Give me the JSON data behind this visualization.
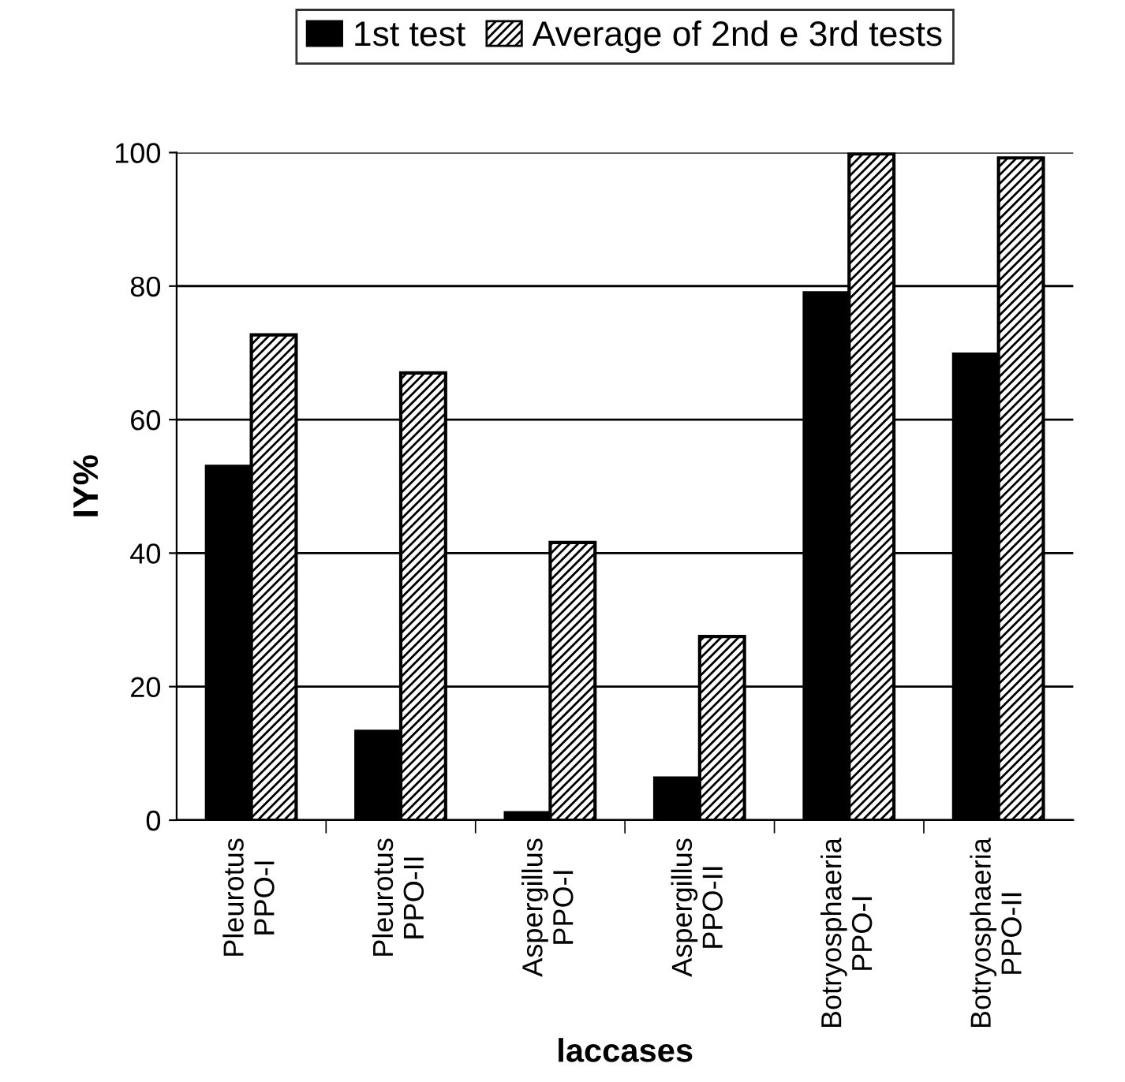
{
  "chart_data": {
    "type": "bar",
    "xlabel": "laccases",
    "ylabel": "IY%",
    "categories": [
      "Pleurotus\nPPO-I",
      "Pleurotus\nPPO-II",
      "Aspergillus\nPPO-I",
      "Aspergillus\nPPO-II",
      "Botryosphaeria\nPPO-I",
      "Botryosphaeria\nPPO-II"
    ],
    "series": [
      {
        "name": "1st test",
        "color": "#000000",
        "values": [
          53,
          13.3,
          1.1,
          6.3,
          79,
          69.8
        ]
      },
      {
        "name": "Average of 2nd e 3rd tests",
        "color": "#000000",
        "values": [
          72.7,
          67,
          41.6,
          27.5,
          99.8,
          99.2
        ]
      }
    ],
    "ylim": [
      0,
      100
    ],
    "yticks": [
      0,
      20,
      40,
      60,
      80,
      100
    ],
    "grid": "y",
    "legend": "top"
  }
}
